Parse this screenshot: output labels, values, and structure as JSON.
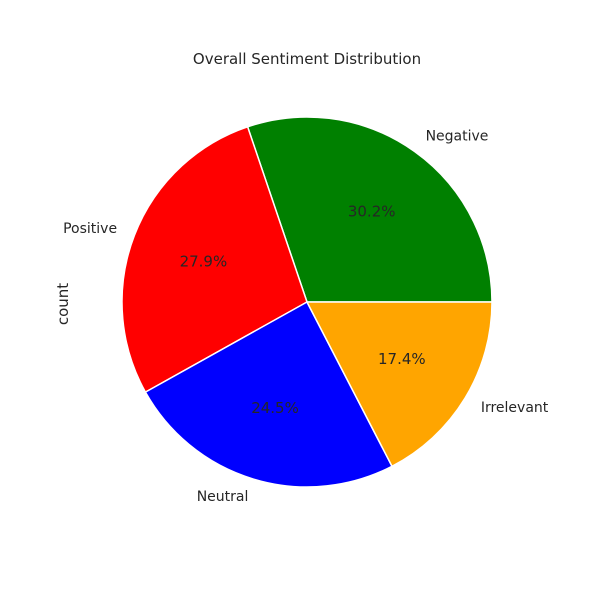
{
  "chart_data": {
    "type": "pie",
    "title": "Overall Sentiment Distribution",
    "ylabel": "count",
    "start_angle_deg": 0,
    "direction": "counterclockwise",
    "slices": [
      {
        "label": "Negative",
        "value": 30.2,
        "pct_label": "30.2%",
        "color": "#008000"
      },
      {
        "label": "Positive",
        "value": 27.9,
        "pct_label": "27.9%",
        "color": "#ff0000"
      },
      {
        "label": "Neutral",
        "value": 24.5,
        "pct_label": "24.5%",
        "color": "#0000ff"
      },
      {
        "label": "Irrelevant",
        "value": 17.4,
        "pct_label": "17.4%",
        "color": "#ffa500"
      }
    ]
  }
}
